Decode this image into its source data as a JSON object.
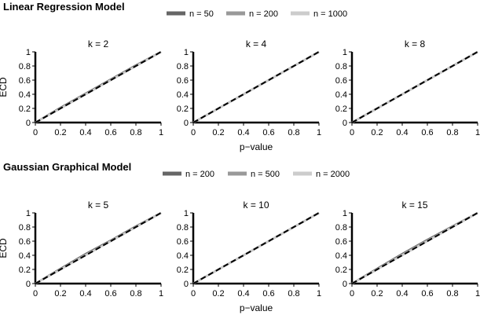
{
  "groups": [
    {
      "title": "Linear Regression Model",
      "legend": [
        {
          "label": "n = 50",
          "color": "#666666"
        },
        {
          "label": "n = 200",
          "color": "#999999"
        },
        {
          "label": "n = 1000",
          "color": "#cccccc"
        }
      ],
      "xlabel": "p−value",
      "ylabel": "ECD",
      "panels": [
        {
          "title": "k = 2"
        },
        {
          "title": "k = 4"
        },
        {
          "title": "k = 8"
        }
      ]
    },
    {
      "title": "Gaussian Graphical Model",
      "legend": [
        {
          "label": "n = 200",
          "color": "#666666"
        },
        {
          "label": "n = 500",
          "color": "#999999"
        },
        {
          "label": "n = 2000",
          "color": "#cccccc"
        }
      ],
      "xlabel": "p−value",
      "ylabel": "ECD",
      "panels": [
        {
          "title": "k = 5"
        },
        {
          "title": "k = 10"
        },
        {
          "title": "k = 15"
        }
      ]
    }
  ],
  "chart_data": [
    {
      "type": "line",
      "title": "k = 2",
      "xlabel": "p−value",
      "ylabel": "ECD",
      "xlim": [
        0,
        1
      ],
      "ylim": [
        0,
        1
      ],
      "x_ticks": [
        "0",
        "0.2",
        "0.4",
        "0.6",
        "0.8",
        "1"
      ],
      "y_ticks": [
        "0",
        "0.2",
        "0.4",
        "0.6",
        "0.8",
        "1"
      ],
      "reference_line": {
        "style": "dashed",
        "x": [
          0,
          1
        ],
        "y": [
          0,
          1
        ]
      },
      "series": [
        {
          "name": "n = 50",
          "color": "#666666",
          "x": [
            0,
            0.2,
            0.4,
            0.6,
            0.8,
            1
          ],
          "y": [
            0,
            0.21,
            0.41,
            0.61,
            0.81,
            1
          ]
        },
        {
          "name": "n = 200",
          "color": "#999999",
          "x": [
            0,
            0.2,
            0.4,
            0.6,
            0.8,
            1
          ],
          "y": [
            0,
            0.2,
            0.4,
            0.6,
            0.8,
            1
          ]
        },
        {
          "name": "n = 1000",
          "color": "#cccccc",
          "x": [
            0,
            0.2,
            0.4,
            0.6,
            0.8,
            1
          ],
          "y": [
            0,
            0.2,
            0.4,
            0.6,
            0.8,
            1
          ]
        }
      ]
    },
    {
      "type": "line",
      "title": "k = 4",
      "xlabel": "p−value",
      "ylabel": "ECD",
      "xlim": [
        0,
        1
      ],
      "ylim": [
        0,
        1
      ],
      "x_ticks": [
        "0",
        "0.2",
        "0.4",
        "0.6",
        "0.8",
        "1"
      ],
      "y_ticks": [
        "0",
        "0.2",
        "0.4",
        "0.6",
        "0.8",
        "1"
      ],
      "reference_line": {
        "style": "dashed",
        "x": [
          0,
          1
        ],
        "y": [
          0,
          1
        ]
      },
      "series": [
        {
          "name": "n = 50",
          "color": "#666666",
          "x": [
            0,
            0.2,
            0.4,
            0.6,
            0.8,
            1
          ],
          "y": [
            0,
            0.2,
            0.4,
            0.6,
            0.8,
            1
          ]
        },
        {
          "name": "n = 200",
          "color": "#999999",
          "x": [
            0,
            0.2,
            0.4,
            0.6,
            0.8,
            1
          ],
          "y": [
            0,
            0.2,
            0.4,
            0.6,
            0.8,
            1
          ]
        },
        {
          "name": "n = 1000",
          "color": "#cccccc",
          "x": [
            0,
            0.2,
            0.4,
            0.6,
            0.8,
            1
          ],
          "y": [
            0,
            0.2,
            0.4,
            0.6,
            0.8,
            1
          ]
        }
      ]
    },
    {
      "type": "line",
      "title": "k = 8",
      "xlabel": "p−value",
      "ylabel": "ECD",
      "xlim": [
        0,
        1
      ],
      "ylim": [
        0,
        1
      ],
      "x_ticks": [
        "0",
        "0.2",
        "0.4",
        "0.6",
        "0.8",
        "1"
      ],
      "y_ticks": [
        "0",
        "0.2",
        "0.4",
        "0.6",
        "0.8",
        "1"
      ],
      "reference_line": {
        "style": "dashed",
        "x": [
          0,
          1
        ],
        "y": [
          0,
          1
        ]
      },
      "series": [
        {
          "name": "n = 50",
          "color": "#666666",
          "x": [
            0,
            0.2,
            0.4,
            0.6,
            0.8,
            1
          ],
          "y": [
            0,
            0.2,
            0.4,
            0.6,
            0.8,
            1
          ]
        },
        {
          "name": "n = 200",
          "color": "#999999",
          "x": [
            0,
            0.2,
            0.4,
            0.6,
            0.8,
            1
          ],
          "y": [
            0,
            0.2,
            0.4,
            0.6,
            0.8,
            1
          ]
        },
        {
          "name": "n = 1000",
          "color": "#cccccc",
          "x": [
            0,
            0.2,
            0.4,
            0.6,
            0.8,
            1
          ],
          "y": [
            0,
            0.2,
            0.4,
            0.6,
            0.8,
            1
          ]
        }
      ]
    },
    {
      "type": "line",
      "title": "k = 5",
      "xlabel": "p−value",
      "ylabel": "ECD",
      "xlim": [
        0,
        1
      ],
      "ylim": [
        0,
        1
      ],
      "x_ticks": [
        "0",
        "0.2",
        "0.4",
        "0.6",
        "0.8",
        "1"
      ],
      "y_ticks": [
        "0",
        "0.2",
        "0.4",
        "0.6",
        "0.8",
        "1"
      ],
      "reference_line": {
        "style": "dashed",
        "x": [
          0,
          1
        ],
        "y": [
          0,
          1
        ]
      },
      "series": [
        {
          "name": "n = 200",
          "color": "#666666",
          "x": [
            0,
            0.2,
            0.4,
            0.6,
            0.8,
            1
          ],
          "y": [
            0,
            0.21,
            0.42,
            0.61,
            0.81,
            1
          ]
        },
        {
          "name": "n = 500",
          "color": "#999999",
          "x": [
            0,
            0.2,
            0.4,
            0.6,
            0.8,
            1
          ],
          "y": [
            0,
            0.2,
            0.41,
            0.6,
            0.8,
            1
          ]
        },
        {
          "name": "n = 2000",
          "color": "#cccccc",
          "x": [
            0,
            0.2,
            0.4,
            0.6,
            0.8,
            1
          ],
          "y": [
            0,
            0.2,
            0.4,
            0.6,
            0.8,
            1
          ]
        }
      ]
    },
    {
      "type": "line",
      "title": "k = 10",
      "xlabel": "p−value",
      "ylabel": "ECD",
      "xlim": [
        0,
        1
      ],
      "ylim": [
        0,
        1
      ],
      "x_ticks": [
        "0",
        "0.2",
        "0.4",
        "0.6",
        "0.8",
        "1"
      ],
      "y_ticks": [
        "0",
        "0.2",
        "0.4",
        "0.6",
        "0.8",
        "1"
      ],
      "reference_line": {
        "style": "dashed",
        "x": [
          0,
          1
        ],
        "y": [
          0,
          1
        ]
      },
      "series": [
        {
          "name": "n = 200",
          "color": "#666666",
          "x": [
            0,
            0.2,
            0.4,
            0.6,
            0.8,
            1
          ],
          "y": [
            0,
            0.2,
            0.4,
            0.6,
            0.8,
            1
          ]
        },
        {
          "name": "n = 500",
          "color": "#999999",
          "x": [
            0,
            0.2,
            0.4,
            0.6,
            0.8,
            1
          ],
          "y": [
            0,
            0.2,
            0.4,
            0.6,
            0.8,
            1
          ]
        },
        {
          "name": "n = 2000",
          "color": "#cccccc",
          "x": [
            0,
            0.2,
            0.4,
            0.6,
            0.8,
            1
          ],
          "y": [
            0,
            0.2,
            0.4,
            0.6,
            0.8,
            1
          ]
        }
      ]
    },
    {
      "type": "line",
      "title": "k = 15",
      "xlabel": "p−value",
      "ylabel": "ECD",
      "xlim": [
        0,
        1
      ],
      "ylim": [
        0,
        1
      ],
      "x_ticks": [
        "0",
        "0.2",
        "0.4",
        "0.6",
        "0.8",
        "1"
      ],
      "y_ticks": [
        "0",
        "0.2",
        "0.4",
        "0.6",
        "0.8",
        "1"
      ],
      "reference_line": {
        "style": "dashed",
        "x": [
          0,
          1
        ],
        "y": [
          0,
          1
        ]
      },
      "series": [
        {
          "name": "n = 200",
          "color": "#666666",
          "x": [
            0,
            0.2,
            0.4,
            0.6,
            0.8,
            1
          ],
          "y": [
            0,
            0.21,
            0.42,
            0.62,
            0.81,
            1
          ]
        },
        {
          "name": "n = 500",
          "color": "#999999",
          "x": [
            0,
            0.2,
            0.4,
            0.6,
            0.8,
            1
          ],
          "y": [
            0,
            0.2,
            0.41,
            0.61,
            0.8,
            1
          ]
        },
        {
          "name": "n = 2000",
          "color": "#cccccc",
          "x": [
            0,
            0.2,
            0.4,
            0.6,
            0.8,
            1
          ],
          "y": [
            0,
            0.2,
            0.4,
            0.6,
            0.8,
            1
          ]
        }
      ]
    }
  ]
}
